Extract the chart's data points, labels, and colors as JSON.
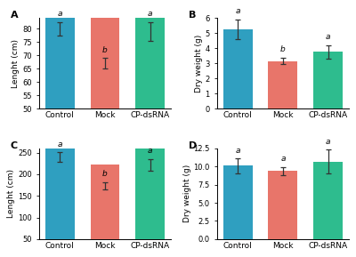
{
  "panels": [
    {
      "label": "A",
      "ylabel": "Lenght (cm)",
      "categories": [
        "Control",
        "Mock",
        "CP-dsRNA"
      ],
      "values": [
        80.0,
        67.0,
        79.0
      ],
      "errors": [
        2.5,
        2.0,
        3.5
      ],
      "ylim": [
        50,
        84
      ],
      "yticks": [
        50,
        55,
        60,
        65,
        70,
        75,
        80
      ],
      "sig_labels": [
        "a",
        "b",
        "a"
      ]
    },
    {
      "label": "B",
      "ylabel": "Dry weight (g)",
      "categories": [
        "Control",
        "Mock",
        "CP-dsRNA"
      ],
      "values": [
        5.25,
        3.15,
        3.75
      ],
      "errors": [
        0.65,
        0.22,
        0.45
      ],
      "ylim": [
        0,
        6
      ],
      "yticks": [
        0,
        1,
        2,
        3,
        4,
        5,
        6
      ],
      "sig_labels": [
        "a",
        "b",
        "a"
      ]
    },
    {
      "label": "C",
      "ylabel": "Lenght (cm)",
      "categories": [
        "Control",
        "Mock",
        "CP-dsRNA"
      ],
      "values": [
        240.0,
        173.0,
        222.0
      ],
      "errors": [
        11.0,
        9.0,
        13.0
      ],
      "ylim": [
        50,
        260
      ],
      "yticks": [
        50,
        100,
        150,
        200,
        250
      ],
      "sig_labels": [
        "a",
        "b",
        "a"
      ]
    },
    {
      "label": "D",
      "ylabel": "Dry weight (g)",
      "categories": [
        "Control",
        "Mock",
        "CP-dsRNA"
      ],
      "values": [
        10.1,
        9.4,
        10.7
      ],
      "errors": [
        1.0,
        0.55,
        1.6
      ],
      "ylim": [
        0,
        12.5
      ],
      "yticks": [
        0,
        2.5,
        5.0,
        7.5,
        10.0,
        12.5
      ],
      "sig_labels": [
        "a",
        "a",
        "a"
      ]
    }
  ],
  "bar_colors": [
    "#2f9fc0",
    "#e8756a",
    "#2ebc8e"
  ],
  "background_color": "#ffffff",
  "label_fontsize": 6.5,
  "tick_fontsize": 6,
  "sig_fontsize": 6.5,
  "panel_label_fontsize": 8
}
